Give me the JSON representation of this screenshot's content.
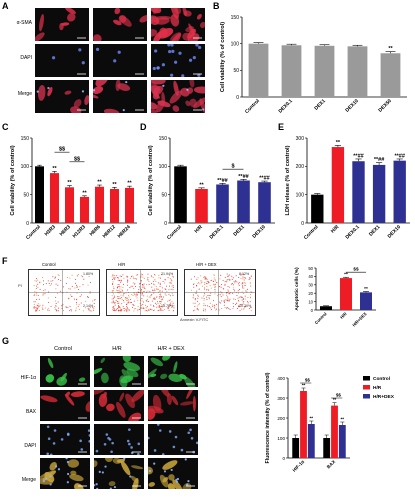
{
  "panels": {
    "A": {
      "letter": "A",
      "rows": [
        "α-SMA",
        "DAPI",
        "Merge"
      ]
    },
    "B": {
      "letter": "B"
    },
    "C": {
      "letter": "C"
    },
    "D": {
      "letter": "D"
    },
    "E": {
      "letter": "E"
    },
    "F": {
      "letter": "F",
      "flow_titles": [
        "Control",
        "H/R",
        "H/R + DEX"
      ],
      "flow_ylabel": "PI",
      "flow_xlabel": "Annexin V-FITC",
      "quadrants": [
        [
          "1.80%",
          "2.14%"
        ],
        [
          "21.94%",
          "15.79%"
        ],
        [
          "8.12%",
          "10.20%"
        ]
      ]
    },
    "G": {
      "letter": "G",
      "cols": [
        "Control",
        "H/R",
        "H/R + DEX"
      ],
      "rows": [
        "HIF-1α",
        "BAX",
        "DAPI",
        "Merge"
      ]
    }
  },
  "colors": {
    "black": "#000000",
    "red": "#ee1c25",
    "blue": "#2e3192",
    "gray": "#9a9a9a"
  },
  "chart_data": [
    {
      "id": "B",
      "type": "bar",
      "ylabel": "Cell viability (% of control)",
      "ylim": [
        0,
        150
      ],
      "yticks": [
        0,
        50,
        100,
        150
      ],
      "categories": [
        "Control",
        "DEX0.1",
        "DEX1",
        "DEX10",
        "DEX50"
      ],
      "values": [
        100,
        97,
        96,
        95,
        82
      ],
      "errors": [
        2,
        2,
        2,
        2,
        3
      ],
      "colors": [
        "#9a9a9a",
        "#9a9a9a",
        "#9a9a9a",
        "#9a9a9a",
        "#9a9a9a"
      ],
      "labels": [
        "",
        "",
        "",
        "",
        "**"
      ],
      "brackets": []
    },
    {
      "id": "C",
      "type": "bar",
      "ylabel": "Cell viability (% of control)",
      "ylim": [
        0,
        150
      ],
      "yticks": [
        0,
        50,
        100,
        150
      ],
      "categories": [
        "Control",
        "H3R3",
        "H6R3",
        "H12R3",
        "H6R6",
        "H6R12",
        "H6R24"
      ],
      "values": [
        100,
        88,
        63,
        46,
        64,
        60,
        62
      ],
      "errors": [
        2,
        3,
        3,
        2,
        3,
        3,
        3
      ],
      "colors": [
        "#000000",
        "#ee1c25",
        "#ee1c25",
        "#ee1c25",
        "#ee1c25",
        "#ee1c25",
        "#ee1c25"
      ],
      "labels": [
        "",
        "**",
        "**",
        "**",
        "**",
        "**",
        "**"
      ],
      "brackets": [
        {
          "from": 1,
          "to": 2,
          "y": 125,
          "text": "$$"
        },
        {
          "from": 2,
          "to": 3,
          "y": 108,
          "text": "$$"
        }
      ]
    },
    {
      "id": "D",
      "type": "bar",
      "ylabel": "Cell viability (% of control)",
      "ylim": [
        0,
        150
      ],
      "yticks": [
        0,
        50,
        100,
        150
      ],
      "categories": [
        "Control",
        "H/R",
        "DEX0.1",
        "DEX1",
        "DEX10"
      ],
      "values": [
        100,
        60,
        68,
        75,
        72
      ],
      "errors": [
        2,
        2,
        2,
        2,
        2
      ],
      "colors": [
        "#000000",
        "#ee1c25",
        "#2e3192",
        "#2e3192",
        "#2e3192"
      ],
      "labels": [
        "",
        "**",
        "**##",
        "**##",
        "**##"
      ],
      "brackets": [
        {
          "from": 2,
          "to": 3,
          "y": 95,
          "text": "$"
        }
      ]
    },
    {
      "id": "E",
      "type": "bar",
      "ylabel": "LDH release (% of control)",
      "ylim": [
        0,
        300
      ],
      "yticks": [
        0,
        100,
        200,
        300
      ],
      "categories": [
        "Control",
        "H/R",
        "DEX0.1",
        "DEX1",
        "DEX10"
      ],
      "values": [
        100,
        268,
        218,
        205,
        220
      ],
      "errors": [
        4,
        6,
        8,
        8,
        6
      ],
      "colors": [
        "#000000",
        "#ee1c25",
        "#2e3192",
        "#2e3192",
        "#2e3192"
      ],
      "labels": [
        "",
        "**",
        "**##",
        "**##",
        "**##"
      ],
      "brackets": []
    },
    {
      "id": "F",
      "type": "bar",
      "ylabel": "Apoptotic cells (%)",
      "ylim": [
        0,
        50
      ],
      "yticks": [
        0,
        10,
        20,
        30,
        40,
        50
      ],
      "categories": [
        "Control",
        "H/R",
        "H/R+DEX"
      ],
      "values": [
        4.5,
        38,
        21
      ],
      "errors": [
        0.5,
        1,
        1
      ],
      "colors": [
        "#000000",
        "#ee1c25",
        "#2e3192"
      ],
      "labels": [
        "",
        "**",
        "**"
      ],
      "brackets": [
        {
          "from": 1,
          "to": 2,
          "y": 45,
          "text": "$$"
        }
      ]
    },
    {
      "id": "G",
      "type": "bar",
      "ylabel": "Fluorescence intensity (% of control)",
      "ylim": [
        0,
        400
      ],
      "yticks": [
        0,
        100,
        200,
        300,
        400
      ],
      "categories": [
        "HIF-1α",
        "BAX"
      ],
      "series": [
        {
          "name": "Control",
          "values": [
            100,
            100
          ],
          "color": "#000000"
        },
        {
          "name": "H/R",
          "values": [
            335,
            262
          ],
          "color": "#ee1c25"
        },
        {
          "name": "H/R+DEX",
          "values": [
            170,
            165
          ],
          "color": "#2e3192"
        }
      ],
      "labels": [
        [
          "",
          "**",
          "**"
        ],
        [
          "",
          "**",
          "**"
        ]
      ],
      "brackets": [
        {
          "group": 0,
          "text": "$$",
          "y": 375
        },
        {
          "group": 1,
          "text": "$$",
          "y": 300
        }
      ]
    }
  ]
}
